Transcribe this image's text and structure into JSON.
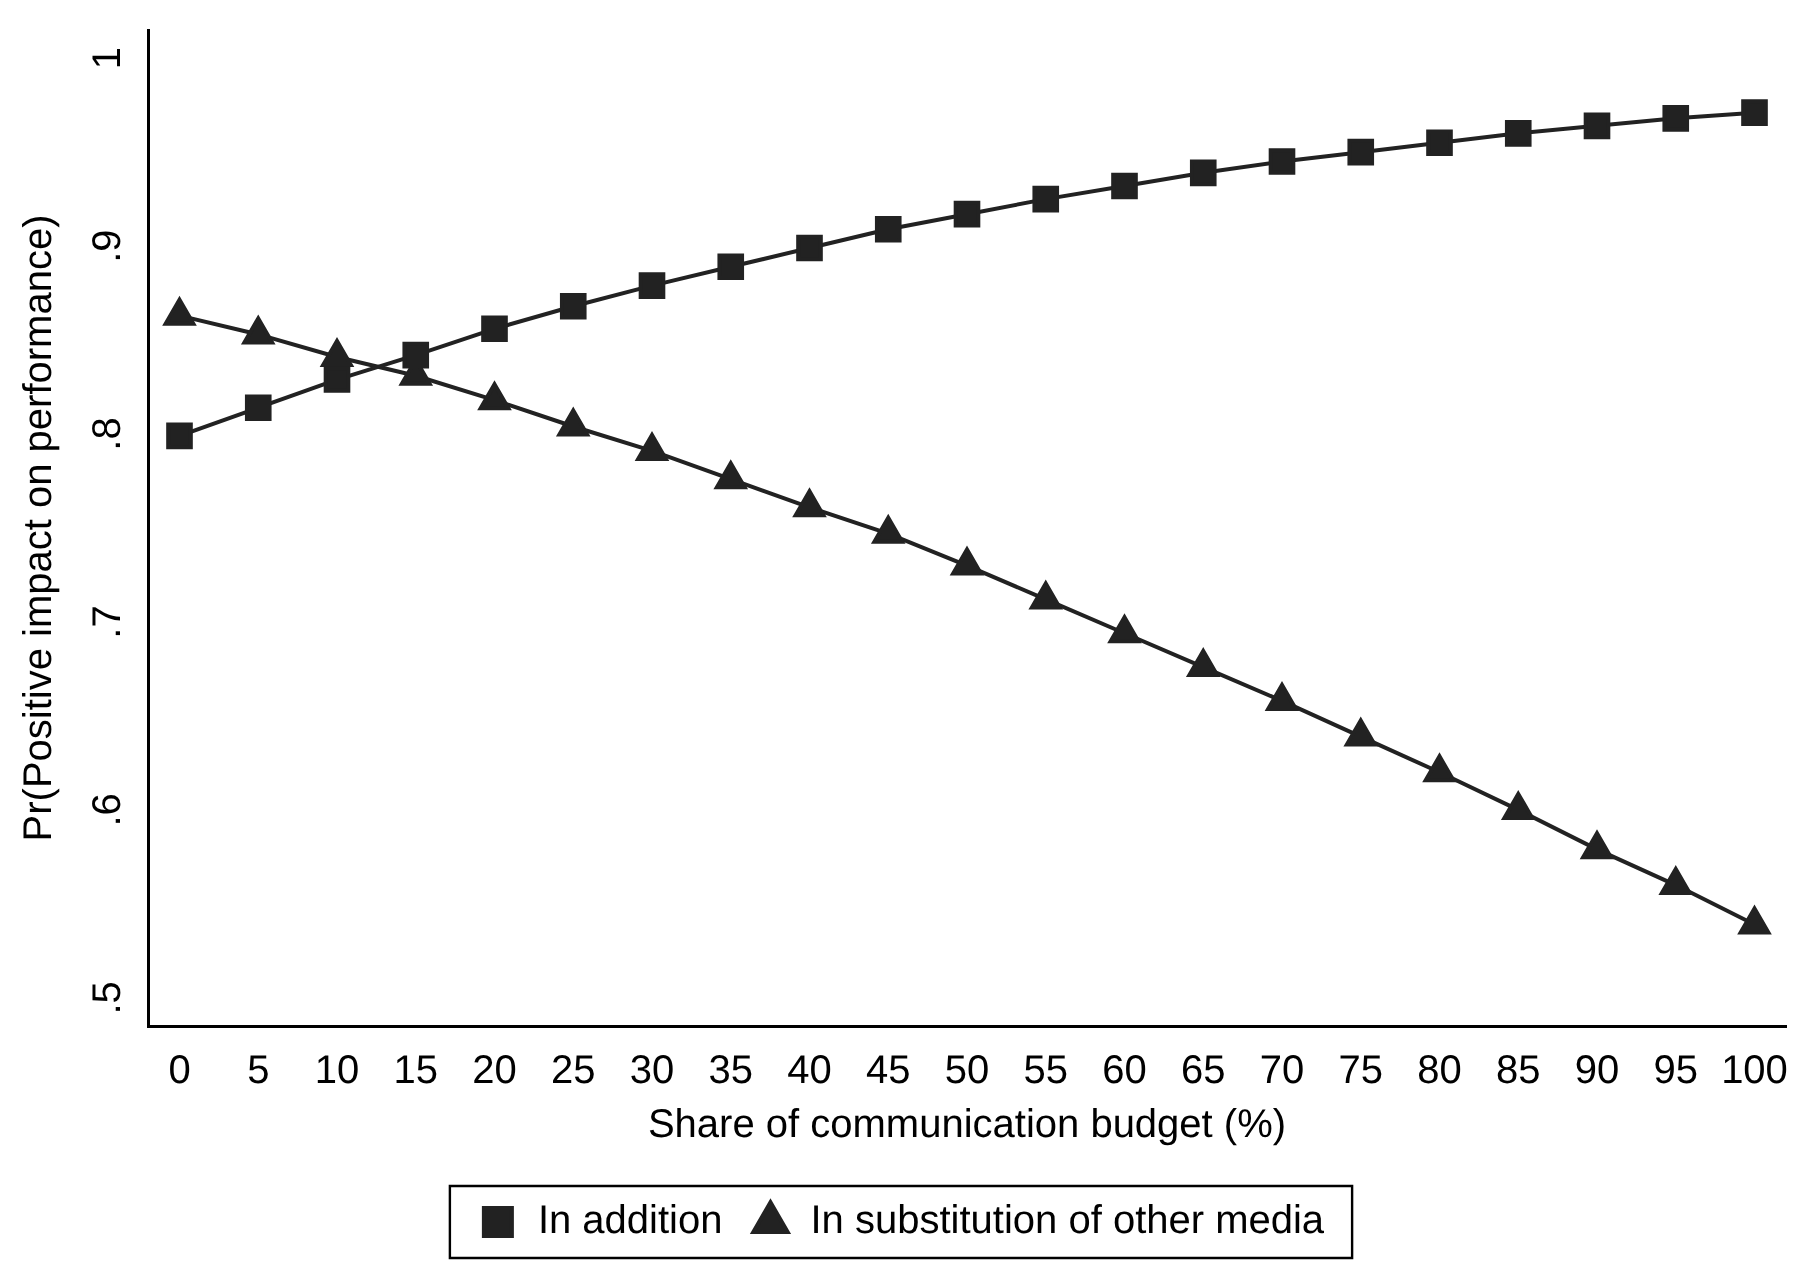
{
  "chart_data": {
    "type": "line",
    "xlabel": "Share of communication budget (%)",
    "ylabel": "Pr(Positive impact on performance)",
    "x": [
      0,
      5,
      10,
      15,
      20,
      25,
      30,
      35,
      40,
      45,
      50,
      55,
      60,
      65,
      70,
      75,
      80,
      85,
      90,
      95,
      100
    ],
    "series": [
      {
        "name": "In addition",
        "color": "#222222",
        "marker": "square",
        "values": [
          0.799,
          0.814,
          0.829,
          0.842,
          0.856,
          0.868,
          0.879,
          0.889,
          0.899,
          0.909,
          0.917,
          0.925,
          0.932,
          0.939,
          0.945,
          0.95,
          0.955,
          0.96,
          0.964,
          0.968,
          0.971
        ]
      },
      {
        "name": "In substitution of other media",
        "color": "#222222",
        "marker": "triangle",
        "values": [
          0.863,
          0.853,
          0.841,
          0.831,
          0.818,
          0.804,
          0.791,
          0.776,
          0.761,
          0.747,
          0.73,
          0.712,
          0.694,
          0.676,
          0.658,
          0.639,
          0.62,
          0.6,
          0.579,
          0.56,
          0.539
        ]
      }
    ],
    "xlim": [
      -2,
      102
    ],
    "xticks": [
      0,
      5,
      10,
      15,
      20,
      25,
      30,
      35,
      40,
      45,
      50,
      55,
      60,
      65,
      70,
      75,
      80,
      85,
      90,
      95,
      100
    ],
    "ylim": [
      0.485,
      1.015
    ],
    "yticks": [
      {
        "value": 0.5,
        "label": ".5"
      },
      {
        "value": 0.6,
        "label": ".6"
      },
      {
        "value": 0.7,
        "label": ".7"
      },
      {
        "value": 0.8,
        "label": ".8"
      },
      {
        "value": 0.9,
        "label": ".9"
      },
      {
        "value": 1,
        "label": "1"
      }
    ],
    "grid": false,
    "legend": "bottom",
    "line_style": "solid"
  }
}
